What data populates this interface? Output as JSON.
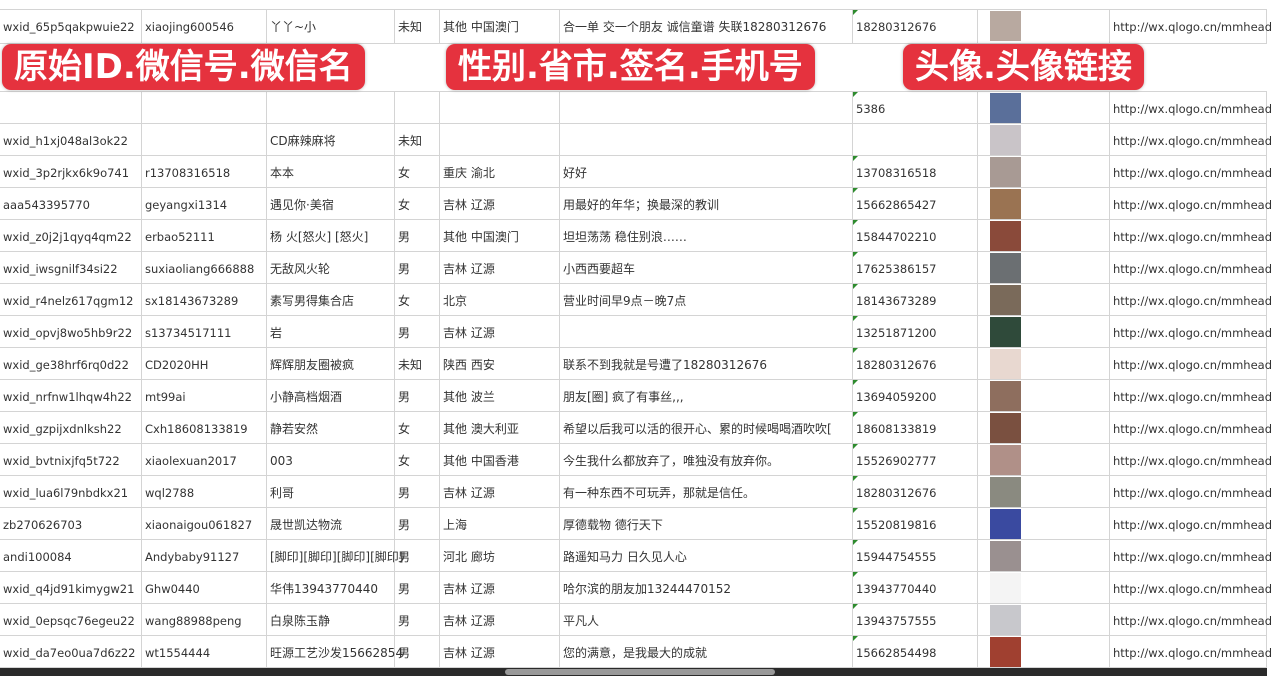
{
  "overlay_labels": [
    "原始ID.微信号.微信名",
    "性别.省市.签名.手机号",
    "头像.头像链接"
  ],
  "rows": [
    {
      "id": "wxid_65p5qakpwuie22",
      "wechat": "xiaojing600546",
      "name": "丫丫~小",
      "gender": "未知",
      "region": "其他 中国澳门",
      "signature": "合一单 交一个朋友 诚信童谱 失联18280312676",
      "phone": "18280312676",
      "link": "http://wx.qlogo.cn/mmhead",
      "avatar": "#b8a9a0"
    },
    {
      "id": "",
      "wechat": "",
      "name": "",
      "gender": "",
      "region": "",
      "signature": "",
      "phone": "5386",
      "link": "http://wx.qlogo.cn/mmhead",
      "avatar": "#5a6f9a"
    },
    {
      "id": "wxid_h1xj048al3ok22",
      "wechat": "",
      "name": "CD麻辣麻将",
      "gender": "未知",
      "region": "",
      "signature": "",
      "phone": "",
      "link": "http://wx.qlogo.cn/mmhead",
      "avatar": "#c9c4c8"
    },
    {
      "id": "wxid_3p2rjkx6k9o741",
      "wechat": "r13708316518",
      "name": "本本",
      "gender": "女",
      "region": "重庆 渝北",
      "signature": "好好",
      "phone": "13708316518",
      "link": "http://wx.qlogo.cn/mmhead",
      "avatar": "#a89a94"
    },
    {
      "id": "aaa543395770",
      "wechat": "geyangxi1314",
      "name": "遇见你·美宿",
      "gender": "女",
      "region": "吉林 辽源",
      "signature": "用最好的年华；换最深的教训",
      "phone": "15662865427",
      "link": "http://wx.qlogo.cn/mmhead",
      "avatar": "#9a7352"
    },
    {
      "id": "wxid_z0j2j1qyq4qm22",
      "wechat": "erbao52111",
      "name": "杨 火[怒火] [怒火]",
      "gender": "男",
      "region": "其他 中国澳门",
      "signature": "坦坦荡荡 稳住别浪……",
      "phone": "15844702210",
      "link": "http://wx.qlogo.cn/mmhead",
      "avatar": "#8a4a3a"
    },
    {
      "id": "wxid_iwsgnilf34si22",
      "wechat": "suxiaoliang666888",
      "name": "无敌风火轮",
      "gender": "男",
      "region": "吉林 辽源",
      "signature": "小西西要超车",
      "phone": "17625386157",
      "link": "http://wx.qlogo.cn/mmhead",
      "avatar": "#6b6f72"
    },
    {
      "id": "wxid_r4nelz617qgm12",
      "wechat": "sx18143673289",
      "name": "素写男得集合店",
      "gender": "女",
      "region": "北京",
      "signature": "营业时间早9点－晚7点",
      "phone": "18143673289",
      "link": "http://wx.qlogo.cn/mmhead",
      "avatar": "#7a6a5a"
    },
    {
      "id": "wxid_opvj8wo5hb9r22",
      "wechat": "s13734517111",
      "name": "岩",
      "gender": "男",
      "region": "吉林 辽源",
      "signature": "",
      "phone": "13251871200",
      "link": "http://wx.qlogo.cn/mmhead",
      "avatar": "#2f4a3a"
    },
    {
      "id": "wxid_ge38hrf6rq0d22",
      "wechat": "CD2020HH",
      "name": "辉辉朋友圈被疯",
      "gender": "未知",
      "region": "陕西 西安",
      "signature": "联系不到我就是号遭了18280312676",
      "phone": "18280312676",
      "link": "http://wx.qlogo.cn/mmhead",
      "avatar": "#e8d8d0"
    },
    {
      "id": "wxid_nrfnw1lhqw4h22",
      "wechat": "mt99ai",
      "name": "小静高档烟酒",
      "gender": "男",
      "region": "其他 波兰",
      "signature": "朋友[圈] 疯了有事丝,,,",
      "phone": "13694059200",
      "link": "http://wx.qlogo.cn/mmhead",
      "avatar": "#8e6e5e"
    },
    {
      "id": "wxid_gzpijxdnlksh22",
      "wechat": "Cxh18608133819",
      "name": "静若安然",
      "gender": "女",
      "region": "其他 澳大利亚",
      "signature": "希望以后我可以活的很开心、累的时候喝喝酒吹吹[",
      "phone": "18608133819",
      "link": "http://wx.qlogo.cn/mmhead",
      "avatar": "#7a5040"
    },
    {
      "id": "wxid_bvtnixjfq5t722",
      "wechat": "xiaolexuan2017",
      "name": "003",
      "gender": "女",
      "region": "其他 中国香港",
      "signature": "今生我什么都放弃了，唯独没有放弃你。",
      "phone": "15526902777",
      "link": "http://wx.qlogo.cn/mmhead",
      "avatar": "#b09088"
    },
    {
      "id": "wxid_lua6l79nbdkx21",
      "wechat": "wql2788",
      "name": "利哥",
      "gender": "男",
      "region": "吉林 辽源",
      "signature": "有一种东西不可玩弄，那就是信任。",
      "phone": "18280312676",
      "link": "http://wx.qlogo.cn/mmhead",
      "avatar": "#8a8a80"
    },
    {
      "id": "zb270626703",
      "wechat": "xiaonaigou061827",
      "name": "晟世凯达物流",
      "gender": "男",
      "region": "上海",
      "signature": "厚德载物 德行天下",
      "phone": "15520819816",
      "link": "http://wx.qlogo.cn/mmhead",
      "avatar": "#3a4aa0"
    },
    {
      "id": "andi100084",
      "wechat": "Andybaby91127",
      "name": "[脚印][脚印][脚印][脚印]",
      "gender": "男",
      "region": "河北 廊坊",
      "signature": "路遥知马力 日久见人心",
      "phone": "15944754555",
      "link": "http://wx.qlogo.cn/mmhead",
      "avatar": "#9a9090"
    },
    {
      "id": "wxid_q4jd91kimygw21",
      "wechat": "Ghw0440",
      "name": "华伟13943770440",
      "gender": "男",
      "region": "吉林 辽源",
      "signature": "哈尔滨的朋友加13244470152",
      "phone": "13943770440",
      "link": "http://wx.qlogo.cn/mmhead",
      "avatar": "#f4f4f4"
    },
    {
      "id": "wxid_0epsqc76egeu22",
      "wechat": "wang88988peng",
      "name": "白泉陈玉静",
      "gender": "男",
      "region": "吉林 辽源",
      "signature": "平凡人",
      "phone": "13943757555",
      "link": "http://wx.qlogo.cn/mmhead",
      "avatar": "#c8c8cc"
    },
    {
      "id": "wxid_da7eo0ua7d6z22",
      "wechat": "wt1554444",
      "name": "旺源工艺沙发15662854",
      "gender": "男",
      "region": "吉林 辽源",
      "signature": "您的满意，是我最大的成就",
      "phone": "15662854498",
      "link": "http://wx.qlogo.cn/mmhead",
      "avatar": "#a04030"
    }
  ]
}
